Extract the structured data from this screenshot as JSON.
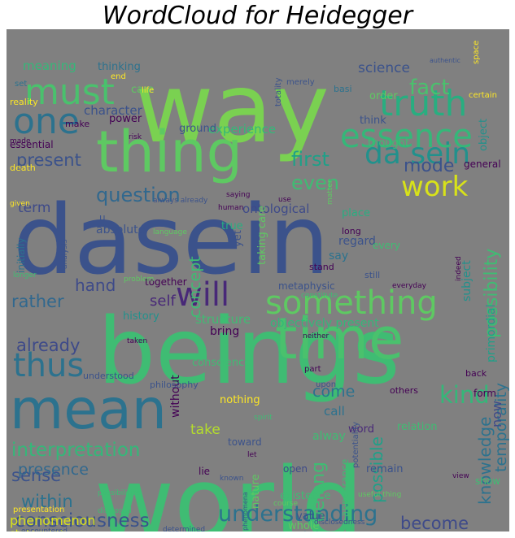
{
  "title": "WordCloud for  Heidegger",
  "colors": {
    "background": "#808080",
    "palette": [
      "#3b528b",
      "#2c728e",
      "#21918c",
      "#28ae80",
      "#5ec962",
      "#addc30",
      "#fde725",
      "#472d7b",
      "#440154"
    ]
  },
  "words": [
    {
      "text": "dasein",
      "color": "#3b528b"
    },
    {
      "text": "beings",
      "color": "#3fbc73"
    },
    {
      "text": "world",
      "color": "#3fbc73"
    },
    {
      "text": "way",
      "color": "#7ad151"
    },
    {
      "text": "thing",
      "color": "#5ec962"
    },
    {
      "text": "time",
      "color": "#4ac16d"
    },
    {
      "text": "mean",
      "color": "#2c728e"
    },
    {
      "text": "something",
      "color": "#5ec962"
    },
    {
      "text": "truth",
      "color": "#28ae80"
    },
    {
      "text": "essence",
      "color": "#35b779"
    },
    {
      "text": "da sein",
      "color": "#21918c"
    },
    {
      "text": "one",
      "color": "#2c728e"
    },
    {
      "text": "must",
      "color": "#4ac16d"
    },
    {
      "text": "will",
      "color": "#482878"
    },
    {
      "text": "thus",
      "color": "#2c728e"
    },
    {
      "text": "work",
      "color": "#d8e219"
    },
    {
      "text": "understanding",
      "color": "#2c728e"
    },
    {
      "text": "consciousness",
      "color": "#3b528b"
    },
    {
      "text": "interpretation",
      "color": "#35b779"
    },
    {
      "text": "question",
      "color": "#31688e"
    },
    {
      "text": "kind",
      "color": "#35b779"
    },
    {
      "text": "fact",
      "color": "#4ac16d"
    },
    {
      "text": "present",
      "color": "#3b528b"
    },
    {
      "text": "first",
      "color": "#1fa088"
    },
    {
      "text": "even",
      "color": "#3fbc73"
    },
    {
      "text": "mode",
      "color": "#3b528b"
    },
    {
      "text": "possibility",
      "color": "#3fbc73"
    },
    {
      "text": "rather",
      "color": "#31688e"
    },
    {
      "text": "already",
      "color": "#3e4a89"
    },
    {
      "text": "knowledge",
      "color": "#2c728e"
    },
    {
      "text": "sense",
      "color": "#3b528b"
    },
    {
      "text": "within",
      "color": "#2c728e"
    },
    {
      "text": "become",
      "color": "#3e4a89"
    },
    {
      "text": "hand",
      "color": "#3e4a89"
    },
    {
      "text": "belong",
      "color": "#3fbc73"
    },
    {
      "text": "possible",
      "color": "#1fa088"
    },
    {
      "text": "temporality",
      "color": "#2c728e"
    },
    {
      "text": "presence",
      "color": "#31688e"
    },
    {
      "text": "phenomenon",
      "color": "#d8e219"
    },
    {
      "text": "science",
      "color": "#3b528b"
    },
    {
      "text": "meaning",
      "color": "#35b779"
    },
    {
      "text": "term",
      "color": "#3e4a89"
    },
    {
      "text": "concept",
      "color": "#3fbc73"
    },
    {
      "text": "come",
      "color": "#2c728e"
    },
    {
      "text": "take",
      "color": "#b5de2b"
    },
    {
      "text": "now",
      "color": "#3e4a89"
    },
    {
      "text": "self",
      "color": "#482878"
    },
    {
      "text": "character",
      "color": "#3b528b"
    },
    {
      "text": "experience",
      "color": "#35b779"
    },
    {
      "text": "objectively present",
      "color": "#35b779"
    },
    {
      "text": "absolute",
      "color": "#3b528b"
    },
    {
      "text": "ontological",
      "color": "#3e4a89"
    },
    {
      "text": "history",
      "color": "#21918c"
    },
    {
      "text": "structure",
      "color": "#3fbc73"
    },
    {
      "text": "conscience",
      "color": "#3fbc73"
    },
    {
      "text": "statement",
      "color": "#d8e219"
    },
    {
      "text": "existential",
      "color": "#2c728e"
    },
    {
      "text": "call",
      "color": "#2c728e"
    },
    {
      "text": "word",
      "color": "#482878"
    },
    {
      "text": "regard",
      "color": "#3b528b"
    },
    {
      "text": "primordial",
      "color": "#1fa088"
    },
    {
      "text": "alway",
      "color": "#3fbc73"
    },
    {
      "text": "relation",
      "color": "#3fbc73"
    },
    {
      "text": "bring",
      "color": "#440154"
    },
    {
      "text": "subject",
      "color": "#21918c"
    },
    {
      "text": "general",
      "color": "#440154"
    },
    {
      "text": "object",
      "color": "#21918c"
    },
    {
      "text": "thinking",
      "color": "#2c728e"
    },
    {
      "text": "care",
      "color": "#5ec962"
    },
    {
      "text": "order",
      "color": "#5ec962"
    },
    {
      "text": "power",
      "color": "#440154"
    },
    {
      "text": "ground",
      "color": "#3b528b"
    },
    {
      "text": "make",
      "color": "#440154"
    },
    {
      "text": "essential",
      "color": "#440154"
    },
    {
      "text": "think",
      "color": "#3b528b"
    },
    {
      "text": "thought",
      "color": "#3fbc73"
    },
    {
      "text": "initially",
      "color": "#2c728e"
    },
    {
      "text": "place",
      "color": "#28ae80"
    },
    {
      "text": "u",
      "color": "#3b528b"
    },
    {
      "text": "say",
      "color": "#2c728e"
    },
    {
      "text": "true",
      "color": "#28ae80"
    },
    {
      "text": "taking care",
      "color": "#5ec962"
    },
    {
      "text": "yet",
      "color": "#3b528b"
    },
    {
      "text": "together",
      "color": "#440154"
    },
    {
      "text": "without",
      "color": "#440154"
    },
    {
      "text": "nothing",
      "color": "#fde725"
    },
    {
      "text": "toward",
      "color": "#3b528b"
    },
    {
      "text": "nature",
      "color": "#5ec962"
    },
    {
      "text": "existence",
      "color": "#3fbc73"
    },
    {
      "text": "value",
      "color": "#3b528b"
    },
    {
      "text": "open",
      "color": "#3e4a89"
    },
    {
      "text": "whole",
      "color": "#5ec962"
    },
    {
      "text": "lie",
      "color": "#440154"
    },
    {
      "text": "appearance",
      "color": "#3fbc73"
    },
    {
      "text": "remain",
      "color": "#3b528b"
    },
    {
      "text": "understand",
      "color": "#3b528b"
    },
    {
      "text": "grounded",
      "color": "#2c728e"
    },
    {
      "text": "show",
      "color": "#3fbc73"
    },
    {
      "text": "every",
      "color": "#3fbc73"
    },
    {
      "text": "long",
      "color": "#440154"
    },
    {
      "text": "still",
      "color": "#3b528b"
    },
    {
      "text": "stand",
      "color": "#440154"
    },
    {
      "text": "metaphysic",
      "color": "#3b528b"
    },
    {
      "text": "understood",
      "color": "#3b528b"
    },
    {
      "text": "philosophy",
      "color": "#3b528b"
    },
    {
      "text": "form",
      "color": "#440154"
    },
    {
      "text": "back",
      "color": "#440154"
    },
    {
      "text": "others",
      "color": "#440154"
    },
    {
      "text": "potentiality",
      "color": "#3b528b"
    },
    {
      "text": "part",
      "color": "#440154"
    },
    {
      "text": "upon",
      "color": "#3b528b"
    },
    {
      "text": "death",
      "color": "#fde725"
    },
    {
      "text": "merely",
      "color": "#3b528b"
    },
    {
      "text": "totality",
      "color": "#3b528b"
    },
    {
      "text": "reality",
      "color": "#fde725"
    },
    {
      "text": "end",
      "color": "#fde725"
    },
    {
      "text": "life",
      "color": "#fde725"
    },
    {
      "text": "set",
      "color": "#2c728e"
    },
    {
      "text": "basi",
      "color": "#2c728e"
    },
    {
      "text": "space",
      "color": "#fde725"
    },
    {
      "text": "certain",
      "color": "#fde725"
    },
    {
      "text": "made",
      "color": "#440154"
    },
    {
      "text": "given",
      "color": "#fde725"
    },
    {
      "text": "risk",
      "color": "#440154"
    },
    {
      "text": "human",
      "color": "#440154"
    },
    {
      "text": "use",
      "color": "#440154"
    },
    {
      "text": "saying",
      "color": "#440154"
    },
    {
      "text": "matter",
      "color": "#5ec962"
    },
    {
      "text": "always already",
      "color": "#3b528b"
    },
    {
      "text": "language",
      "color": "#5ec962"
    },
    {
      "text": "analysis",
      "color": "#3b528b"
    },
    {
      "text": "problem",
      "color": "#5ec962"
    },
    {
      "text": "constitute",
      "color": "#3fbc73"
    },
    {
      "text": "everyday",
      "color": "#440154"
    },
    {
      "text": "indeed",
      "color": "#440154"
    },
    {
      "text": "longer",
      "color": "#3fbc73"
    },
    {
      "text": "taken",
      "color": "#440154"
    },
    {
      "text": "neither",
      "color": "#440154"
    },
    {
      "text": "presentation",
      "color": "#fde725"
    },
    {
      "text": "disclosed",
      "color": "#3fbc73"
    },
    {
      "text": "possibilities",
      "color": "#3fbc73"
    },
    {
      "text": "course",
      "color": "#5ec962"
    },
    {
      "text": "let",
      "color": "#440154"
    },
    {
      "text": "known",
      "color": "#3b528b"
    },
    {
      "text": "view",
      "color": "#440154"
    },
    {
      "text": "disclosedness",
      "color": "#3b528b"
    },
    {
      "text": "determined",
      "color": "#3b528b"
    },
    {
      "text": "encountered",
      "color": "#3b528b"
    },
    {
      "text": "authentic",
      "color": "#3b528b"
    },
    {
      "text": "spirit",
      "color": "#3fbc73"
    },
    {
      "text": "useful thing",
      "color": "#5ec962"
    },
    {
      "text": "phenomena",
      "color": "#3b528b"
    }
  ]
}
